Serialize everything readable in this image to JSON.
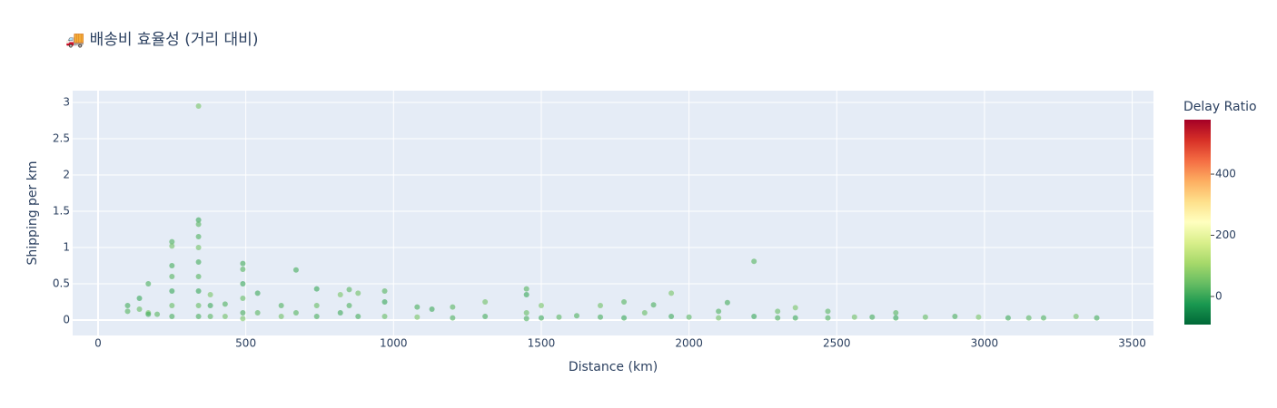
{
  "chart_data": {
    "type": "scatter",
    "title": "🚚 배송비 효율성 (거리 대비)",
    "x_label": "Distance (km)",
    "y_label": "Shipping per km",
    "colorbar_title": "Delay Ratio",
    "x": [
      100,
      100,
      140,
      140,
      170,
      170,
      170,
      200,
      250,
      250,
      250,
      250,
      250,
      250,
      250,
      340,
      340,
      340,
      340,
      340,
      340,
      340,
      340,
      340,
      340,
      380,
      380,
      380,
      430,
      430,
      490,
      490,
      490,
      490,
      490,
      490,
      540,
      540,
      620,
      620,
      670,
      670,
      740,
      740,
      740,
      820,
      820,
      850,
      850,
      880,
      880,
      970,
      970,
      970,
      1080,
      1080,
      1130,
      1200,
      1200,
      1310,
      1310,
      1450,
      1450,
      1450,
      1450,
      1500,
      1500,
      1560,
      1620,
      1700,
      1700,
      1780,
      1780,
      1850,
      1880,
      1940,
      1940,
      2000,
      2100,
      2100,
      2130,
      2220,
      2220,
      2300,
      2300,
      2360,
      2360,
      2470,
      2470,
      2560,
      2620,
      2700,
      2700,
      2800,
      2900,
      2980,
      3080,
      3150,
      3200,
      3310,
      3380
    ],
    "values": [
      0.2,
      0.12,
      0.3,
      0.15,
      0.5,
      0.1,
      0.08,
      0.08,
      1.08,
      1.02,
      0.75,
      0.6,
      0.4,
      0.2,
      0.05,
      2.95,
      1.38,
      1.32,
      1.15,
      1.0,
      0.8,
      0.6,
      0.4,
      0.2,
      0.05,
      0.35,
      0.2,
      0.05,
      0.22,
      0.05,
      0.78,
      0.7,
      0.5,
      0.3,
      0.1,
      0.02,
      0.37,
      0.1,
      0.2,
      0.05,
      0.69,
      0.1,
      0.43,
      0.2,
      0.05,
      0.35,
      0.1,
      0.42,
      0.2,
      0.37,
      0.05,
      0.4,
      0.25,
      0.05,
      0.18,
      0.04,
      0.15,
      0.18,
      0.03,
      0.25,
      0.05,
      0.43,
      0.35,
      0.1,
      0.02,
      0.2,
      0.03,
      0.04,
      0.06,
      0.2,
      0.04,
      0.25,
      0.03,
      0.1,
      0.21,
      0.37,
      0.05,
      0.04,
      0.12,
      0.03,
      0.24,
      0.81,
      0.05,
      0.12,
      0.03,
      0.17,
      0.03,
      0.12,
      0.03,
      0.04,
      0.04,
      0.1,
      0.03,
      0.04,
      0.05,
      0.04,
      0.03,
      0.03,
      0.03,
      0.05,
      0.03
    ],
    "color_values": [
      10,
      25,
      0,
      40,
      15,
      60,
      5,
      30,
      20,
      50,
      10,
      25,
      0,
      40,
      15,
      60,
      5,
      30,
      20,
      50,
      10,
      25,
      0,
      40,
      15,
      60,
      5,
      30,
      20,
      50,
      10,
      25,
      0,
      40,
      15,
      60,
      5,
      30,
      20,
      50,
      10,
      25,
      0,
      40,
      15,
      60,
      5,
      30,
      20,
      50,
      10,
      25,
      0,
      40,
      15,
      60,
      5,
      30,
      20,
      50,
      10,
      25,
      0,
      40,
      15,
      60,
      5,
      30,
      20,
      50,
      10,
      25,
      0,
      40,
      15,
      60,
      5,
      30,
      20,
      50,
      10,
      25,
      0,
      40,
      15,
      60,
      5,
      30,
      20,
      50,
      10,
      25,
      0,
      40,
      15,
      60,
      5,
      30,
      20,
      50,
      10
    ],
    "clim": [
      -92,
      578
    ],
    "cticks": [
      0,
      200,
      400
    ],
    "colorscale": [
      [
        0,
        "#006837"
      ],
      [
        0.1,
        "#1a9850"
      ],
      [
        0.2,
        "#66bd63"
      ],
      [
        0.3,
        "#a6d96a"
      ],
      [
        0.4,
        "#d9ef8b"
      ],
      [
        0.5,
        "#ffffbf"
      ],
      [
        0.6,
        "#fee08b"
      ],
      [
        0.7,
        "#fdae61"
      ],
      [
        0.8,
        "#f46d43"
      ],
      [
        0.9,
        "#d73027"
      ],
      [
        1,
        "#a50026"
      ]
    ],
    "opacity": 0.6,
    "xlim": [
      -86,
      3572
    ],
    "xticks": [
      0,
      500,
      1000,
      1500,
      2000,
      2500,
      3000,
      3500
    ],
    "ylim": [
      -0.2125,
      3.1625
    ],
    "yticks": [
      0,
      0.5,
      1,
      1.5,
      2,
      2.5,
      3
    ],
    "grid": true
  }
}
